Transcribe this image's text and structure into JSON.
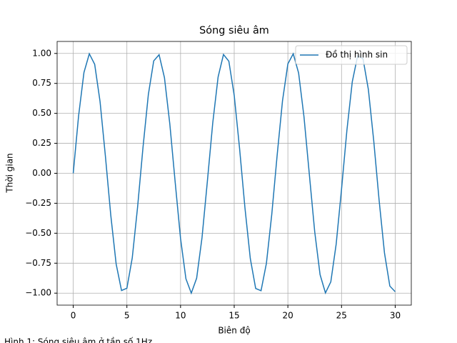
{
  "chart_data": {
    "type": "line",
    "title": "Sóng siêu âm",
    "xlabel": "Biên độ",
    "ylabel": "Thời gian",
    "caption": "Hình 1: Sóng siêu âm ở tần số 1Hz",
    "x": [
      0,
      0.5,
      1,
      1.5,
      2,
      2.5,
      3,
      3.5,
      4,
      4.5,
      5,
      5.5,
      6,
      6.5,
      7,
      7.5,
      8,
      8.5,
      9,
      9.5,
      10,
      10.5,
      11,
      11.5,
      12,
      12.5,
      13,
      13.5,
      14,
      14.5,
      15,
      15.5,
      16,
      16.5,
      17,
      17.5,
      18,
      18.5,
      19,
      19.5,
      20,
      20.5,
      21,
      21.5,
      22,
      22.5,
      23,
      23.5,
      24,
      24.5,
      25,
      25.5,
      26,
      26.5,
      27,
      27.5,
      28,
      28.5,
      29,
      29.5,
      30
    ],
    "series": [
      {
        "name": "Đồ thị hình sin",
        "color": "#1f77b4",
        "values": [
          0,
          0.479,
          0.841,
          0.997,
          0.909,
          0.598,
          0.141,
          -0.351,
          -0.757,
          -0.978,
          -0.959,
          -0.706,
          -0.279,
          0.215,
          0.657,
          0.938,
          0.989,
          0.798,
          0.412,
          -0.075,
          -0.544,
          -0.88,
          -1.0,
          -0.875,
          -0.537,
          -0.066,
          0.42,
          0.804,
          0.991,
          0.935,
          0.65,
          0.207,
          -0.288,
          -0.712,
          -0.961,
          -0.98,
          -0.751,
          -0.342,
          0.15,
          0.605,
          0.913,
          0.997,
          0.837,
          0.472,
          -0.009,
          -0.487,
          -0.846,
          -0.998,
          -0.906,
          -0.591,
          -0.132,
          0.359,
          0.763,
          0.98,
          0.956,
          0.699,
          0.271,
          -0.224,
          -0.664,
          -0.941,
          -0.988
        ]
      }
    ],
    "xlim": [
      -1.5,
      31.5
    ],
    "ylim": [
      -1.1,
      1.1
    ],
    "xticks": [
      0,
      5,
      10,
      15,
      20,
      25,
      30
    ],
    "yticks": [
      {
        "value": -1,
        "label": "−1.00"
      },
      {
        "value": -0.75,
        "label": "−0.75"
      },
      {
        "value": -0.5,
        "label": "−0.50"
      },
      {
        "value": -0.25,
        "label": "−0.25"
      },
      {
        "value": 0,
        "label": "0.00"
      },
      {
        "value": 0.25,
        "label": "0.25"
      },
      {
        "value": 0.5,
        "label": "0.50"
      },
      {
        "value": 0.75,
        "label": "0.75"
      },
      {
        "value": 1,
        "label": "1.00"
      }
    ],
    "grid": true,
    "legend": "upper right"
  }
}
